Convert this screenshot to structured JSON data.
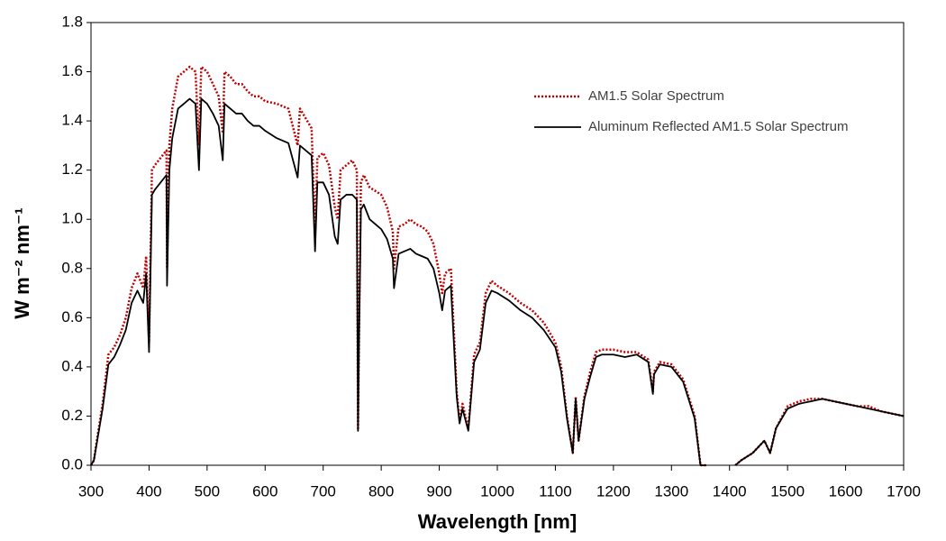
{
  "chart_data": {
    "type": "line",
    "xlabel": "Wavelength [nm]",
    "ylabel": "W m⁻² nm⁻¹",
    "x": [
      300,
      305,
      310,
      320,
      330,
      340,
      350,
      360,
      370,
      380,
      390,
      395,
      400,
      405,
      410,
      420,
      430,
      431,
      435,
      440,
      450,
      460,
      470,
      480,
      486,
      490,
      500,
      510,
      520,
      527,
      530,
      540,
      550,
      560,
      570,
      580,
      590,
      600,
      620,
      640,
      656,
      660,
      680,
      686,
      690,
      700,
      710,
      720,
      725,
      730,
      740,
      750,
      758,
      760,
      762,
      765,
      770,
      780,
      800,
      810,
      820,
      822,
      830,
      840,
      850,
      860,
      870,
      880,
      890,
      900,
      905,
      910,
      920,
      930,
      935,
      940,
      950,
      960,
      970,
      980,
      990,
      1000,
      1020,
      1040,
      1060,
      1080,
      1100,
      1110,
      1120,
      1130,
      1135,
      1140,
      1150,
      1160,
      1170,
      1180,
      1200,
      1220,
      1240,
      1260,
      1268,
      1270,
      1280,
      1300,
      1320,
      1340,
      1350,
      1360,
      1380,
      1400,
      1410,
      1420,
      1440,
      1460,
      1470,
      1480,
      1500,
      1520,
      1540,
      1560,
      1580,
      1600,
      1620,
      1640,
      1660,
      1680,
      1700
    ],
    "series": [
      {
        "name": "AM1.5 Solar Spectrum",
        "color": "#c00000",
        "style": "dotted",
        "values": [
          0,
          0.02,
          0.1,
          0.25,
          0.45,
          0.48,
          0.53,
          0.6,
          0.72,
          0.78,
          0.72,
          0.85,
          0.5,
          1.2,
          1.22,
          1.25,
          1.28,
          0.8,
          1.3,
          1.45,
          1.58,
          1.6,
          1.62,
          1.6,
          1.3,
          1.62,
          1.6,
          1.55,
          1.5,
          1.35,
          1.6,
          1.58,
          1.55,
          1.55,
          1.52,
          1.5,
          1.5,
          1.48,
          1.47,
          1.45,
          1.3,
          1.45,
          1.37,
          0.95,
          1.25,
          1.27,
          1.22,
          1.05,
          1.0,
          1.2,
          1.22,
          1.24,
          1.2,
          0.15,
          0.6,
          1.15,
          1.18,
          1.13,
          1.1,
          1.05,
          0.95,
          0.8,
          0.97,
          0.98,
          1.0,
          0.98,
          0.97,
          0.95,
          0.9,
          0.78,
          0.7,
          0.78,
          0.8,
          0.3,
          0.18,
          0.25,
          0.15,
          0.45,
          0.5,
          0.7,
          0.75,
          0.73,
          0.7,
          0.66,
          0.63,
          0.58,
          0.5,
          0.4,
          0.2,
          0.05,
          0.28,
          0.1,
          0.28,
          0.38,
          0.46,
          0.47,
          0.47,
          0.46,
          0.46,
          0.43,
          0.3,
          0.38,
          0.42,
          0.41,
          0.35,
          0.2,
          0,
          0,
          null,
          null,
          0,
          0.02,
          0.05,
          0.1,
          0.05,
          0.15,
          0.24,
          0.26,
          0.27,
          0.27,
          0.26,
          0.25,
          0.24,
          0.24,
          0.22,
          0.21,
          0.2
        ]
      },
      {
        "name": "Aluminum Reflected AM1.5 Solar Spectrum",
        "color": "#000000",
        "style": "solid",
        "values": [
          0,
          0.02,
          0.09,
          0.23,
          0.41,
          0.44,
          0.49,
          0.55,
          0.66,
          0.71,
          0.66,
          0.78,
          0.46,
          1.1,
          1.12,
          1.15,
          1.18,
          0.73,
          1.2,
          1.33,
          1.45,
          1.47,
          1.49,
          1.47,
          1.2,
          1.49,
          1.47,
          1.43,
          1.38,
          1.24,
          1.47,
          1.45,
          1.43,
          1.43,
          1.4,
          1.38,
          1.38,
          1.36,
          1.33,
          1.31,
          1.17,
          1.3,
          1.26,
          0.87,
          1.15,
          1.15,
          1.1,
          0.93,
          0.9,
          1.08,
          1.1,
          1.1,
          1.08,
          0.14,
          0.55,
          1.04,
          1.06,
          1.0,
          0.96,
          0.92,
          0.84,
          0.72,
          0.86,
          0.87,
          0.88,
          0.86,
          0.85,
          0.84,
          0.8,
          0.7,
          0.63,
          0.71,
          0.73,
          0.28,
          0.17,
          0.23,
          0.14,
          0.42,
          0.47,
          0.66,
          0.71,
          0.7,
          0.67,
          0.63,
          0.6,
          0.55,
          0.48,
          0.38,
          0.19,
          0.05,
          0.27,
          0.1,
          0.27,
          0.36,
          0.44,
          0.45,
          0.45,
          0.44,
          0.45,
          0.42,
          0.29,
          0.37,
          0.41,
          0.4,
          0.34,
          0.19,
          0,
          0,
          null,
          null,
          0,
          0.02,
          0.05,
          0.1,
          0.05,
          0.15,
          0.23,
          0.25,
          0.26,
          0.27,
          0.26,
          0.25,
          0.24,
          0.23,
          0.22,
          0.21,
          0.2
        ]
      }
    ],
    "xlim": [
      300,
      1700
    ],
    "xticks": [
      300,
      400,
      500,
      600,
      700,
      800,
      900,
      1000,
      1100,
      1200,
      1300,
      1400,
      1500,
      1600,
      1700
    ],
    "ylim": [
      0,
      1.8
    ],
    "yticks": [
      {
        "value": 0,
        "label": "0.0"
      },
      {
        "value": 0.2,
        "label": "0.2"
      },
      {
        "value": 0.4,
        "label": "0.4"
      },
      {
        "value": 0.6,
        "label": "0.6"
      },
      {
        "value": 0.8,
        "label": "0.8"
      },
      {
        "value": 1.0,
        "label": "1.0"
      },
      {
        "value": 1.2,
        "label": "1.2"
      },
      {
        "value": 1.4,
        "label": "1.4"
      },
      {
        "value": 1.6,
        "label": "1.6"
      },
      {
        "value": 1.8,
        "label": "1.8"
      }
    ],
    "grid": false,
    "legend": "upper right"
  }
}
